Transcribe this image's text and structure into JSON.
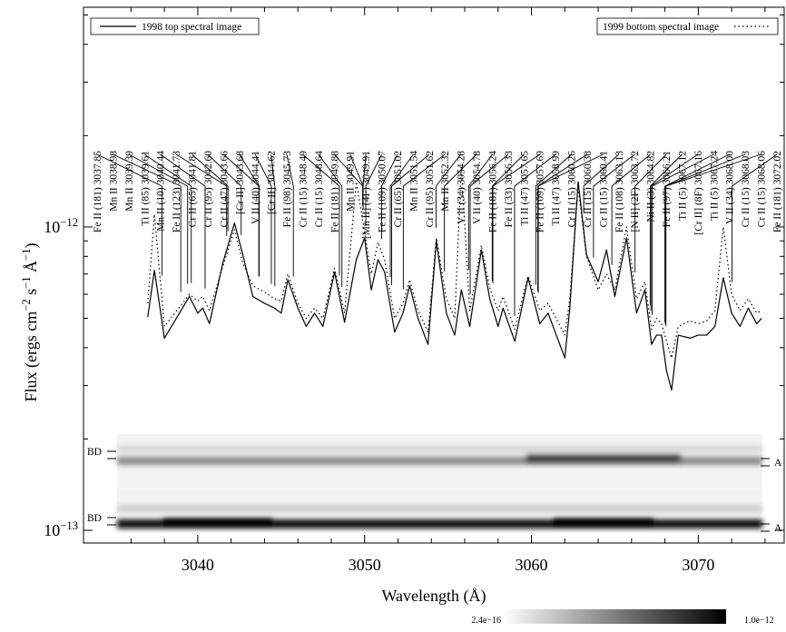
{
  "chart_data": {
    "type": "line",
    "xlabel": "Wavelength (Å)",
    "ylabel": "Flux (ergs cm−2 s−1 Å−1)",
    "log_y": true,
    "xlim": [
      3033.15,
      3075.15
    ],
    "ylim": [
      9.08e-14,
      5.3e-12
    ],
    "xticks": [
      3040,
      3050,
      3060,
      3070
    ],
    "xminorticks": [
      3036,
      3038,
      3042,
      3044,
      3046,
      3048,
      3052,
      3054,
      3056,
      3058,
      3062,
      3064,
      3066,
      3068,
      3072,
      3074
    ],
    "yticks": [
      {
        "value": 1e-13,
        "label": "10−13"
      },
      {
        "value": 1e-12,
        "label": "10−12"
      }
    ],
    "yminorticks": [
      2e-13,
      3e-13,
      4e-13,
      5e-13,
      6e-13,
      7e-13,
      8e-13,
      9e-13,
      2e-12,
      3e-12,
      4e-12,
      5e-12
    ],
    "x": [
      3037.0,
      3037.4,
      3038.0,
      3039.5,
      3040.0,
      3040.3,
      3040.7,
      3041.5,
      3042.2,
      3042.7,
      3043.3,
      3044.0,
      3044.6,
      3045.0,
      3045.4,
      3046.0,
      3046.5,
      3047.0,
      3047.5,
      3048.2,
      3048.8,
      3049.5,
      3050.0,
      3050.4,
      3050.8,
      3051.2,
      3051.8,
      3052.3,
      3052.7,
      3053.2,
      3053.8,
      3054.3,
      3054.9,
      3055.4,
      3055.8,
      3056.3,
      3057.0,
      3057.5,
      3058.0,
      3058.3,
      3059.0,
      3059.8,
      3060.5,
      3061.0,
      3062.0,
      3062.3,
      3062.8,
      3063.3,
      3064.0,
      3064.5,
      3065.0,
      3065.7,
      3066.3,
      3066.8,
      3067.2,
      3067.5,
      3067.8,
      3068.1,
      3068.4,
      3068.8,
      3069.5,
      3070.0,
      3070.5,
      3071.0,
      3071.5,
      3072.0,
      3072.5,
      3073.0,
      3073.5,
      3073.8
    ],
    "series": [
      {
        "name": "1998 top spectral image",
        "color": "#000000",
        "style": "solid",
        "legend": "upper left",
        "values": [
          5.05e-13,
          7.2e-13,
          4.3e-13,
          5.9e-13,
          5.2e-13,
          5.4e-13,
          4.8e-13,
          7.6e-13,
          1.03e-12,
          8.1e-13,
          5.9e-13,
          5.6e-13,
          5.4e-13,
          5.2e-13,
          6.7e-13,
          5.4e-13,
          4.7e-13,
          5.2e-13,
          4.7e-13,
          7.1e-13,
          4.85e-13,
          7.8e-13,
          9.2e-13,
          6.2e-13,
          7.8e-13,
          7.1e-13,
          4.5e-13,
          5.2e-13,
          6.4e-13,
          5e-13,
          4.1e-13,
          9e-13,
          5.2e-13,
          4.4e-13,
          6.2e-13,
          4.7e-13,
          8.4e-13,
          5.8e-13,
          4.7e-13,
          5.4e-13,
          4.2e-13,
          6.8e-13,
          4.8e-13,
          5.2e-13,
          3.7e-13,
          5.4e-13,
          1.41e-12,
          8.1e-13,
          6.6e-13,
          8.4e-13,
          5.9e-13,
          9.2e-13,
          5.2e-13,
          6.2e-13,
          4.1e-13,
          4.4e-13,
          4.4e-13,
          3.35e-13,
          2.9e-13,
          4.4e-13,
          4.3e-13,
          4.4e-13,
          4.4e-13,
          4.7e-13,
          6.8e-13,
          5.2e-13,
          4.7e-13,
          5.4e-13,
          4.8e-13,
          5e-13
        ]
      },
      {
        "name": "1999 bottom spectral image",
        "color": "#000000",
        "style": "dotted",
        "legend": "upper right",
        "values": [
          5.6e-13,
          1.1e-12,
          4.7e-13,
          6e-13,
          5.7e-13,
          5.9e-13,
          5.3e-13,
          7.4e-13,
          9.8e-13,
          7.6e-13,
          6.4e-13,
          6.1e-13,
          5.8e-13,
          5.7e-13,
          7e-13,
          5.6e-13,
          5e-13,
          5.4e-13,
          5e-13,
          7.3e-13,
          5.2e-13,
          1.41e-12,
          9.6e-13,
          7e-13,
          8.9e-13,
          7.8e-13,
          5e-13,
          5.6e-13,
          6.7e-13,
          5.3e-13,
          4.5e-13,
          9.2e-13,
          5.8e-13,
          5e-13,
          1.58e-12,
          5.3e-13,
          8.7e-13,
          6.3e-13,
          5.3e-13,
          5.9e-13,
          4.6e-13,
          6.9e-13,
          5.3e-13,
          5.6e-13,
          4.4e-13,
          5.8e-13,
          1.36e-12,
          8e-13,
          6.2e-13,
          7e-13,
          6.2e-13,
          1e-12,
          5.8e-13,
          6.6e-13,
          4.6e-13,
          5e-13,
          4.8e-13,
          4.2e-13,
          3.7e-13,
          4.7e-13,
          4.9e-13,
          4.8e-13,
          4.9e-13,
          5.3e-13,
          1e-12,
          6e-13,
          5.3e-13,
          5.8e-13,
          5.2e-13,
          5.3e-13
        ]
      }
    ],
    "annotations": [
      {
        "label": "Fe II (181) 3037.85",
        "x": 3037.85
      },
      {
        "label": "Mn II 3038.98",
        "x": 3038.98
      },
      {
        "label": "Mn II 3039.39",
        "x": 3039.39
      },
      {
        "label": "Ti II (85) 3039.61",
        "x": 3039.61
      },
      {
        "label": "Mn II (10) 3040.44",
        "x": 3040.44
      },
      {
        "label": "Fe II (123) 3041.73",
        "x": 3041.73
      },
      {
        "label": "Cr II (65) 3041.81",
        "x": 3041.81
      },
      {
        "label": "Cr II (95) 3042.60",
        "x": 3042.6
      },
      {
        "label": "Cr II (47) 3043.66",
        "x": 3043.66
      },
      {
        "label": "[Cr II] 3043.68",
        "x": 3043.68
      },
      {
        "label": "V II (40) 3044.41",
        "x": 3044.41
      },
      {
        "label": "[Cr II] 3044.62",
        "x": 3044.62
      },
      {
        "label": "Fe II (98) 3045.73",
        "x": 3045.73
      },
      {
        "label": "Cr II (15) 3048.49",
        "x": 3048.49
      },
      {
        "label": "Cr II (15) 3048.64",
        "x": 3048.64
      },
      {
        "label": "Fe II (181) 3049.88",
        "x": 3049.88
      },
      {
        "label": "Mn II 3049.91",
        "x": 3049.91
      },
      {
        "label": "[Mn II] (4F) 3049.91",
        "x": 3049.91
      },
      {
        "label": "Fe II (109) 3050.07",
        "x": 3050.07
      },
      {
        "label": "Cr II (65) 3051.02",
        "x": 3051.02
      },
      {
        "label": "Mn II 3051.54",
        "x": 3051.54
      },
      {
        "label": "Cr II (95) 3051.62",
        "x": 3051.62
      },
      {
        "label": "Mn II 3052.32",
        "x": 3052.32
      },
      {
        "label": "V II (34) 3054.28",
        "x": 3054.28
      },
      {
        "label": "V II (40) 3054.78",
        "x": 3054.78
      },
      {
        "label": "Fe II (181) 3056.24",
        "x": 3056.24
      },
      {
        "label": "Fe II (33) 3056.33",
        "x": 3056.33
      },
      {
        "label": "Ti II (47) 3057.65",
        "x": 3057.65
      },
      {
        "label": "Fe II (109) 3057.69",
        "x": 3057.69
      },
      {
        "label": "Ti II (47) 3058.99",
        "x": 3058.99
      },
      {
        "label": "Cr II (15) 3060.26",
        "x": 3060.26
      },
      {
        "label": "Cr II (15) 3060.38",
        "x": 3060.38
      },
      {
        "label": "Cr II (15) 3060.41",
        "x": 3060.41
      },
      {
        "label": "Fe II (108) 3063.13",
        "x": 3063.13
      },
      {
        "label": "[N II] (2F) 3063.72",
        "x": 3063.72
      },
      {
        "label": "Ni II (3) 3064.82",
        "x": 3064.82
      },
      {
        "label": "Fe II (97) 3066.21",
        "x": 3066.21
      },
      {
        "label": "Ti II (5) 3067.12",
        "x": 3067.12
      },
      {
        "label": "[Cr II] (8F) 3067.16",
        "x": 3067.16
      },
      {
        "label": "Ti II (5) 3067.24",
        "x": 3067.24
      },
      {
        "label": "V II (34) 3068.00",
        "x": 3068.0
      },
      {
        "label": "Cr II (15) 3068.03",
        "x": 3068.03
      },
      {
        "label": "Cr II (15) 3068.06",
        "x": 3068.06
      },
      {
        "label": "Fe II (181) 3072.02",
        "x": 3072.02
      }
    ],
    "image_labels": {
      "left": "BD",
      "right": "A"
    },
    "colorbar": [
      {
        "value": 2.4e-16,
        "label": "2.4e−16"
      },
      {
        "value": 1e-12,
        "label": "1.0e−12"
      }
    ]
  }
}
